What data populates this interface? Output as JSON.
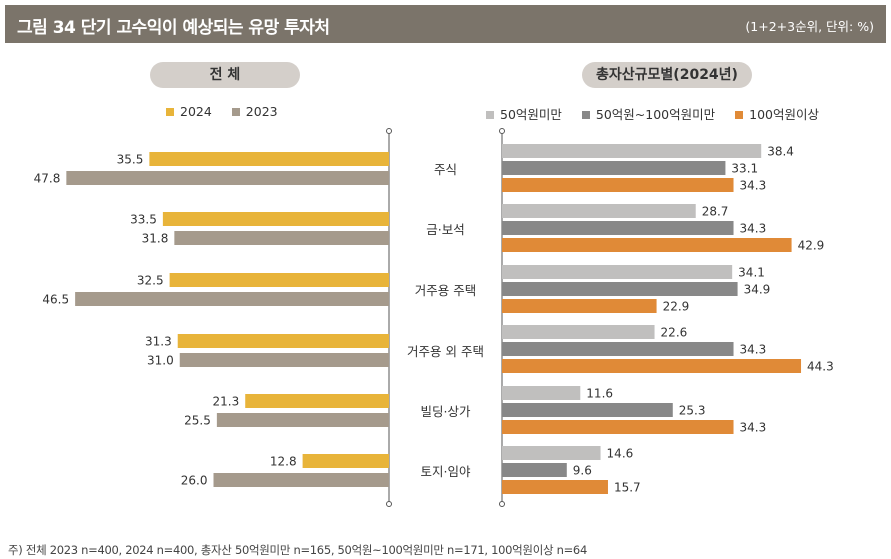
{
  "header": {
    "title": "그림 34  단기 고수익이 예상되는 유망 투자처",
    "unit": "(1+2+3순위, 단위: %)"
  },
  "colors": {
    "c2024": "#e8b43a",
    "c2023": "#a59a8c",
    "under50": "#c0bfbe",
    "mid": "#888888",
    "over100": "#e08a37"
  },
  "chart_data": [
    {
      "type": "bar",
      "orientation": "horizontal",
      "title": "전 체",
      "categories": [
        "주식",
        "금·보석",
        "거주용 주택",
        "거주용 외 주택",
        "빌딩·상가",
        "토지·임야"
      ],
      "series": [
        {
          "name": "2024",
          "color": "#e8b43a",
          "values": [
            35.5,
            33.5,
            32.5,
            31.3,
            21.3,
            12.8
          ]
        },
        {
          "name": "2023",
          "color": "#a59a8c",
          "values": [
            47.8,
            31.8,
            46.5,
            31.0,
            25.5,
            26.0
          ]
        }
      ],
      "xlim": [
        0,
        50
      ]
    },
    {
      "type": "bar",
      "orientation": "horizontal",
      "title": "총자산규모별(2024년)",
      "categories": [
        "주식",
        "금·보석",
        "거주용 주택",
        "거주용 외 주택",
        "빌딩·상가",
        "토지·임야"
      ],
      "series": [
        {
          "name": "50억원미만",
          "color": "#c0bfbe",
          "values": [
            38.4,
            28.7,
            34.1,
            22.6,
            11.6,
            14.6
          ]
        },
        {
          "name": "50억원~100억원미만",
          "color": "#888888",
          "values": [
            33.1,
            34.3,
            34.9,
            34.3,
            25.3,
            9.6
          ]
        },
        {
          "name": "100억원이상",
          "color": "#e08a37",
          "values": [
            34.3,
            42.9,
            22.9,
            44.3,
            34.3,
            15.7
          ]
        }
      ],
      "xlim": [
        0,
        50
      ]
    }
  ],
  "legend_left": [
    "2024",
    "2023"
  ],
  "legend_right": [
    "50억원미만",
    "50억원~100억원미만",
    "100억원이상"
  ],
  "pill_left": "전 체",
  "pill_right": "총자산규모별(2024년)",
  "note": "주) 전체 2023 n=400, 2024 n=400, 총자산 50억원미만 n=165, 50억원~100억원미만 n=171, 100억원이상 n=64"
}
